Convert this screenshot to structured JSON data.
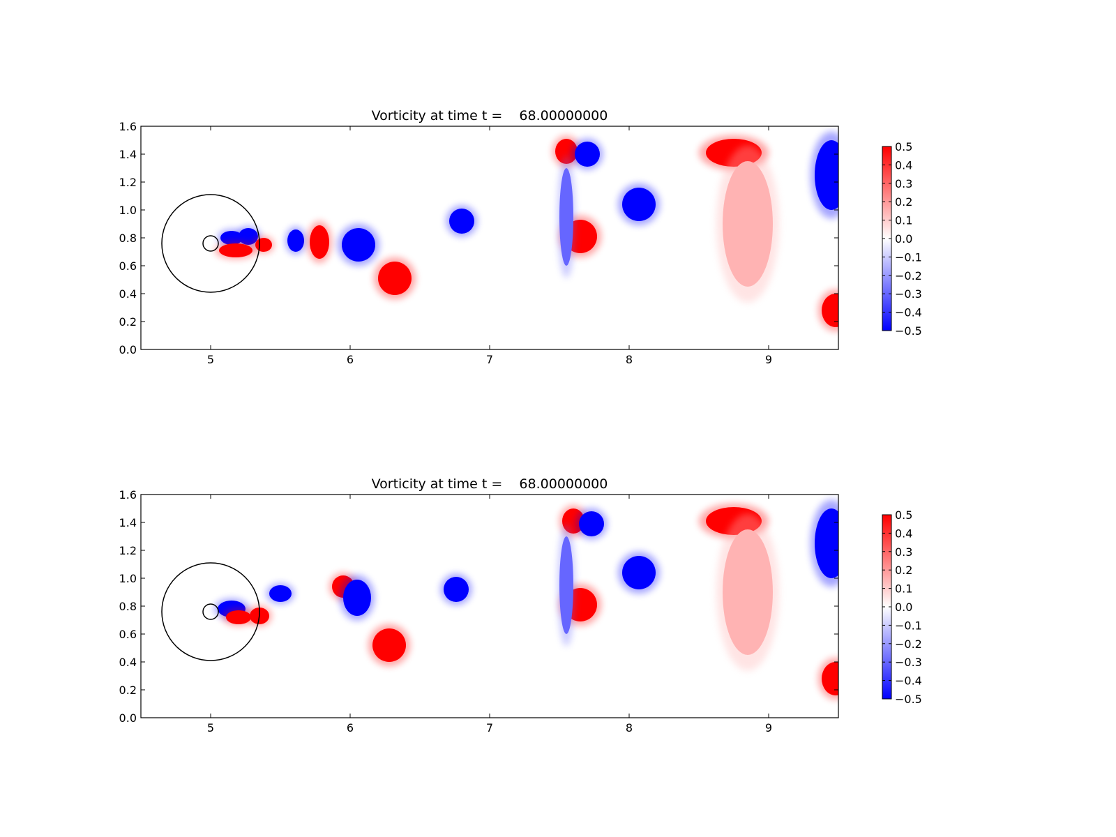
{
  "figure": {
    "background": "#ffffff",
    "colormap": "bwr",
    "colors": {
      "negative": "#0000ff",
      "zero": "#ffffff",
      "positive": "#ff0000",
      "axes": "#000000"
    }
  },
  "chart_data": [
    {
      "type": "heatmap",
      "title": "Vorticity at time t =    68.00000000",
      "xlabel": "",
      "ylabel": "",
      "xlim": [
        4.5,
        9.5
      ],
      "ylim": [
        0.0,
        1.6
      ],
      "xticks": [
        5,
        6,
        7,
        8,
        9
      ],
      "xtick_labels": [
        "5",
        "6",
        "7",
        "8",
        "9"
      ],
      "yticks": [
        0.0,
        0.2,
        0.4,
        0.6,
        0.8,
        1.0,
        1.2,
        1.4,
        1.6
      ],
      "ytick_labels": [
        "0.0",
        "0.2",
        "0.4",
        "0.6",
        "0.8",
        "1.0",
        "1.2",
        "1.4",
        "1.6"
      ],
      "grid": false,
      "colorbar": {
        "range": [
          -0.5,
          0.5
        ],
        "ticks": [
          0.5,
          0.4,
          0.3,
          0.2,
          0.1,
          0.0,
          -0.1,
          -0.2,
          -0.3,
          -0.4,
          -0.5
        ],
        "tick_labels": [
          "0.5",
          "0.4",
          "0.3",
          "0.2",
          "0.1",
          "0.0",
          "−0.1",
          "−0.2",
          "−0.3",
          "−0.4",
          "−0.5"
        ]
      },
      "circles": [
        {
          "cx": 5.0,
          "cy": 0.76,
          "r": 0.35
        },
        {
          "cx": 5.0,
          "cy": 0.76,
          "r": 0.055
        }
      ],
      "vortices": [
        {
          "x": 5.15,
          "y": 0.8,
          "rx": 0.08,
          "ry": 0.05,
          "value": -0.5
        },
        {
          "x": 5.27,
          "y": 0.81,
          "rx": 0.07,
          "ry": 0.06,
          "value": -0.5
        },
        {
          "x": 5.18,
          "y": 0.71,
          "rx": 0.12,
          "ry": 0.05,
          "value": 0.5
        },
        {
          "x": 5.38,
          "y": 0.75,
          "rx": 0.06,
          "ry": 0.05,
          "value": 0.5
        },
        {
          "x": 5.61,
          "y": 0.78,
          "rx": 0.06,
          "ry": 0.08,
          "value": -0.5
        },
        {
          "x": 5.78,
          "y": 0.77,
          "rx": 0.07,
          "ry": 0.12,
          "value": 0.5
        },
        {
          "x": 6.06,
          "y": 0.75,
          "rx": 0.12,
          "ry": 0.12,
          "value": -0.5
        },
        {
          "x": 6.32,
          "y": 0.51,
          "rx": 0.12,
          "ry": 0.12,
          "value": 0.5
        },
        {
          "x": 6.8,
          "y": 0.92,
          "rx": 0.09,
          "ry": 0.09,
          "value": -0.5
        },
        {
          "x": 7.55,
          "y": 1.42,
          "rx": 0.08,
          "ry": 0.09,
          "value": 0.5
        },
        {
          "x": 7.7,
          "y": 1.4,
          "rx": 0.09,
          "ry": 0.09,
          "value": -0.5
        },
        {
          "x": 7.65,
          "y": 0.81,
          "rx": 0.12,
          "ry": 0.12,
          "value": 0.5
        },
        {
          "x": 8.07,
          "y": 1.04,
          "rx": 0.12,
          "ry": 0.12,
          "value": -0.5
        },
        {
          "x": 8.75,
          "y": 1.41,
          "rx": 0.2,
          "ry": 0.1,
          "value": 0.5
        },
        {
          "x": 9.45,
          "y": 1.25,
          "rx": 0.12,
          "ry": 0.25,
          "value": -0.5
        },
        {
          "x": 9.48,
          "y": 0.28,
          "rx": 0.1,
          "ry": 0.12,
          "value": 0.5
        },
        {
          "x": 7.55,
          "y": 0.95,
          "rx": 0.05,
          "ry": 0.35,
          "value": -0.3
        },
        {
          "x": 8.85,
          "y": 0.9,
          "rx": 0.18,
          "ry": 0.45,
          "value": 0.15
        }
      ]
    },
    {
      "type": "heatmap",
      "title": "Vorticity at time t =    68.00000000",
      "xlabel": "",
      "ylabel": "",
      "xlim": [
        4.5,
        9.5
      ],
      "ylim": [
        0.0,
        1.6
      ],
      "xticks": [
        5,
        6,
        7,
        8,
        9
      ],
      "xtick_labels": [
        "5",
        "6",
        "7",
        "8",
        "9"
      ],
      "yticks": [
        0.0,
        0.2,
        0.4,
        0.6,
        0.8,
        1.0,
        1.2,
        1.4,
        1.6
      ],
      "ytick_labels": [
        "0.0",
        "0.2",
        "0.4",
        "0.6",
        "0.8",
        "1.0",
        "1.2",
        "1.4",
        "1.6"
      ],
      "grid": false,
      "colorbar": {
        "range": [
          -0.5,
          0.5
        ],
        "ticks": [
          0.5,
          0.4,
          0.3,
          0.2,
          0.1,
          0.0,
          -0.1,
          -0.2,
          -0.3,
          -0.4,
          -0.5
        ],
        "tick_labels": [
          "0.5",
          "0.4",
          "0.3",
          "0.2",
          "0.1",
          "0.0",
          "−0.1",
          "−0.2",
          "−0.3",
          "−0.4",
          "−0.5"
        ]
      },
      "circles": [
        {
          "cx": 5.0,
          "cy": 0.76,
          "r": 0.35
        },
        {
          "cx": 5.0,
          "cy": 0.76,
          "r": 0.055
        }
      ],
      "vortices": [
        {
          "x": 5.15,
          "y": 0.78,
          "rx": 0.1,
          "ry": 0.06,
          "value": -0.5
        },
        {
          "x": 5.2,
          "y": 0.72,
          "rx": 0.09,
          "ry": 0.05,
          "value": 0.5
        },
        {
          "x": 5.35,
          "y": 0.73,
          "rx": 0.07,
          "ry": 0.06,
          "value": 0.5
        },
        {
          "x": 5.5,
          "y": 0.89,
          "rx": 0.08,
          "ry": 0.06,
          "value": -0.5
        },
        {
          "x": 5.95,
          "y": 0.94,
          "rx": 0.08,
          "ry": 0.08,
          "value": 0.5
        },
        {
          "x": 6.05,
          "y": 0.86,
          "rx": 0.1,
          "ry": 0.13,
          "value": -0.5
        },
        {
          "x": 6.28,
          "y": 0.52,
          "rx": 0.12,
          "ry": 0.12,
          "value": 0.5
        },
        {
          "x": 6.76,
          "y": 0.92,
          "rx": 0.09,
          "ry": 0.09,
          "value": -0.5
        },
        {
          "x": 7.6,
          "y": 1.41,
          "rx": 0.08,
          "ry": 0.09,
          "value": 0.5
        },
        {
          "x": 7.73,
          "y": 1.39,
          "rx": 0.09,
          "ry": 0.09,
          "value": -0.5
        },
        {
          "x": 7.65,
          "y": 0.81,
          "rx": 0.12,
          "ry": 0.12,
          "value": 0.5
        },
        {
          "x": 8.07,
          "y": 1.04,
          "rx": 0.12,
          "ry": 0.12,
          "value": -0.5
        },
        {
          "x": 8.75,
          "y": 1.41,
          "rx": 0.2,
          "ry": 0.1,
          "value": 0.5
        },
        {
          "x": 9.45,
          "y": 1.25,
          "rx": 0.12,
          "ry": 0.25,
          "value": -0.5
        },
        {
          "x": 9.48,
          "y": 0.28,
          "rx": 0.1,
          "ry": 0.12,
          "value": 0.5
        },
        {
          "x": 7.55,
          "y": 0.95,
          "rx": 0.05,
          "ry": 0.35,
          "value": -0.3
        },
        {
          "x": 8.85,
          "y": 0.9,
          "rx": 0.18,
          "ry": 0.45,
          "value": 0.15
        }
      ]
    }
  ]
}
